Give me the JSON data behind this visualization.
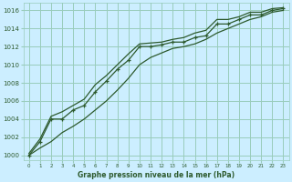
{
  "title": "Graphe pression niveau de la mer (hPa)",
  "background_color": "#cceeff",
  "grid_color": "#99ccbb",
  "line_color": "#2d5a2d",
  "x_labels": [
    "0",
    "1",
    "2",
    "3",
    "4",
    "5",
    "6",
    "7",
    "8",
    "9",
    "10",
    "11",
    "12",
    "13",
    "14",
    "15",
    "16",
    "17",
    "18",
    "19",
    "20",
    "21",
    "22",
    "23"
  ],
  "ylim": [
    999.5,
    1016.8
  ],
  "yticks": [
    1000,
    1002,
    1004,
    1006,
    1008,
    1010,
    1012,
    1014,
    1016
  ],
  "main_line": [
    1000.0,
    1001.5,
    1004.0,
    1004.0,
    1005.0,
    1005.5,
    1007.0,
    1008.2,
    1009.5,
    1010.5,
    1012.0,
    1012.0,
    1012.2,
    1012.5,
    1012.5,
    1013.0,
    1013.2,
    1014.5,
    1014.5,
    1015.0,
    1015.5,
    1015.5,
    1016.0,
    1016.2
  ],
  "upper_line": [
    1000.2,
    1001.8,
    1004.3,
    1004.8,
    1005.5,
    1006.2,
    1007.8,
    1008.8,
    1010.0,
    1011.2,
    1012.3,
    1012.4,
    1012.5,
    1012.8,
    1013.0,
    1013.5,
    1013.8,
    1015.0,
    1015.0,
    1015.3,
    1015.8,
    1015.8,
    1016.2,
    1016.3
  ],
  "lower_line": [
    1000.0,
    1000.8,
    1001.5,
    1002.5,
    1003.2,
    1004.0,
    1005.0,
    1006.0,
    1007.2,
    1008.5,
    1010.0,
    1010.8,
    1011.3,
    1011.8,
    1012.0,
    1012.3,
    1012.8,
    1013.5,
    1014.0,
    1014.5,
    1015.0,
    1015.3,
    1015.8,
    1016.0
  ]
}
